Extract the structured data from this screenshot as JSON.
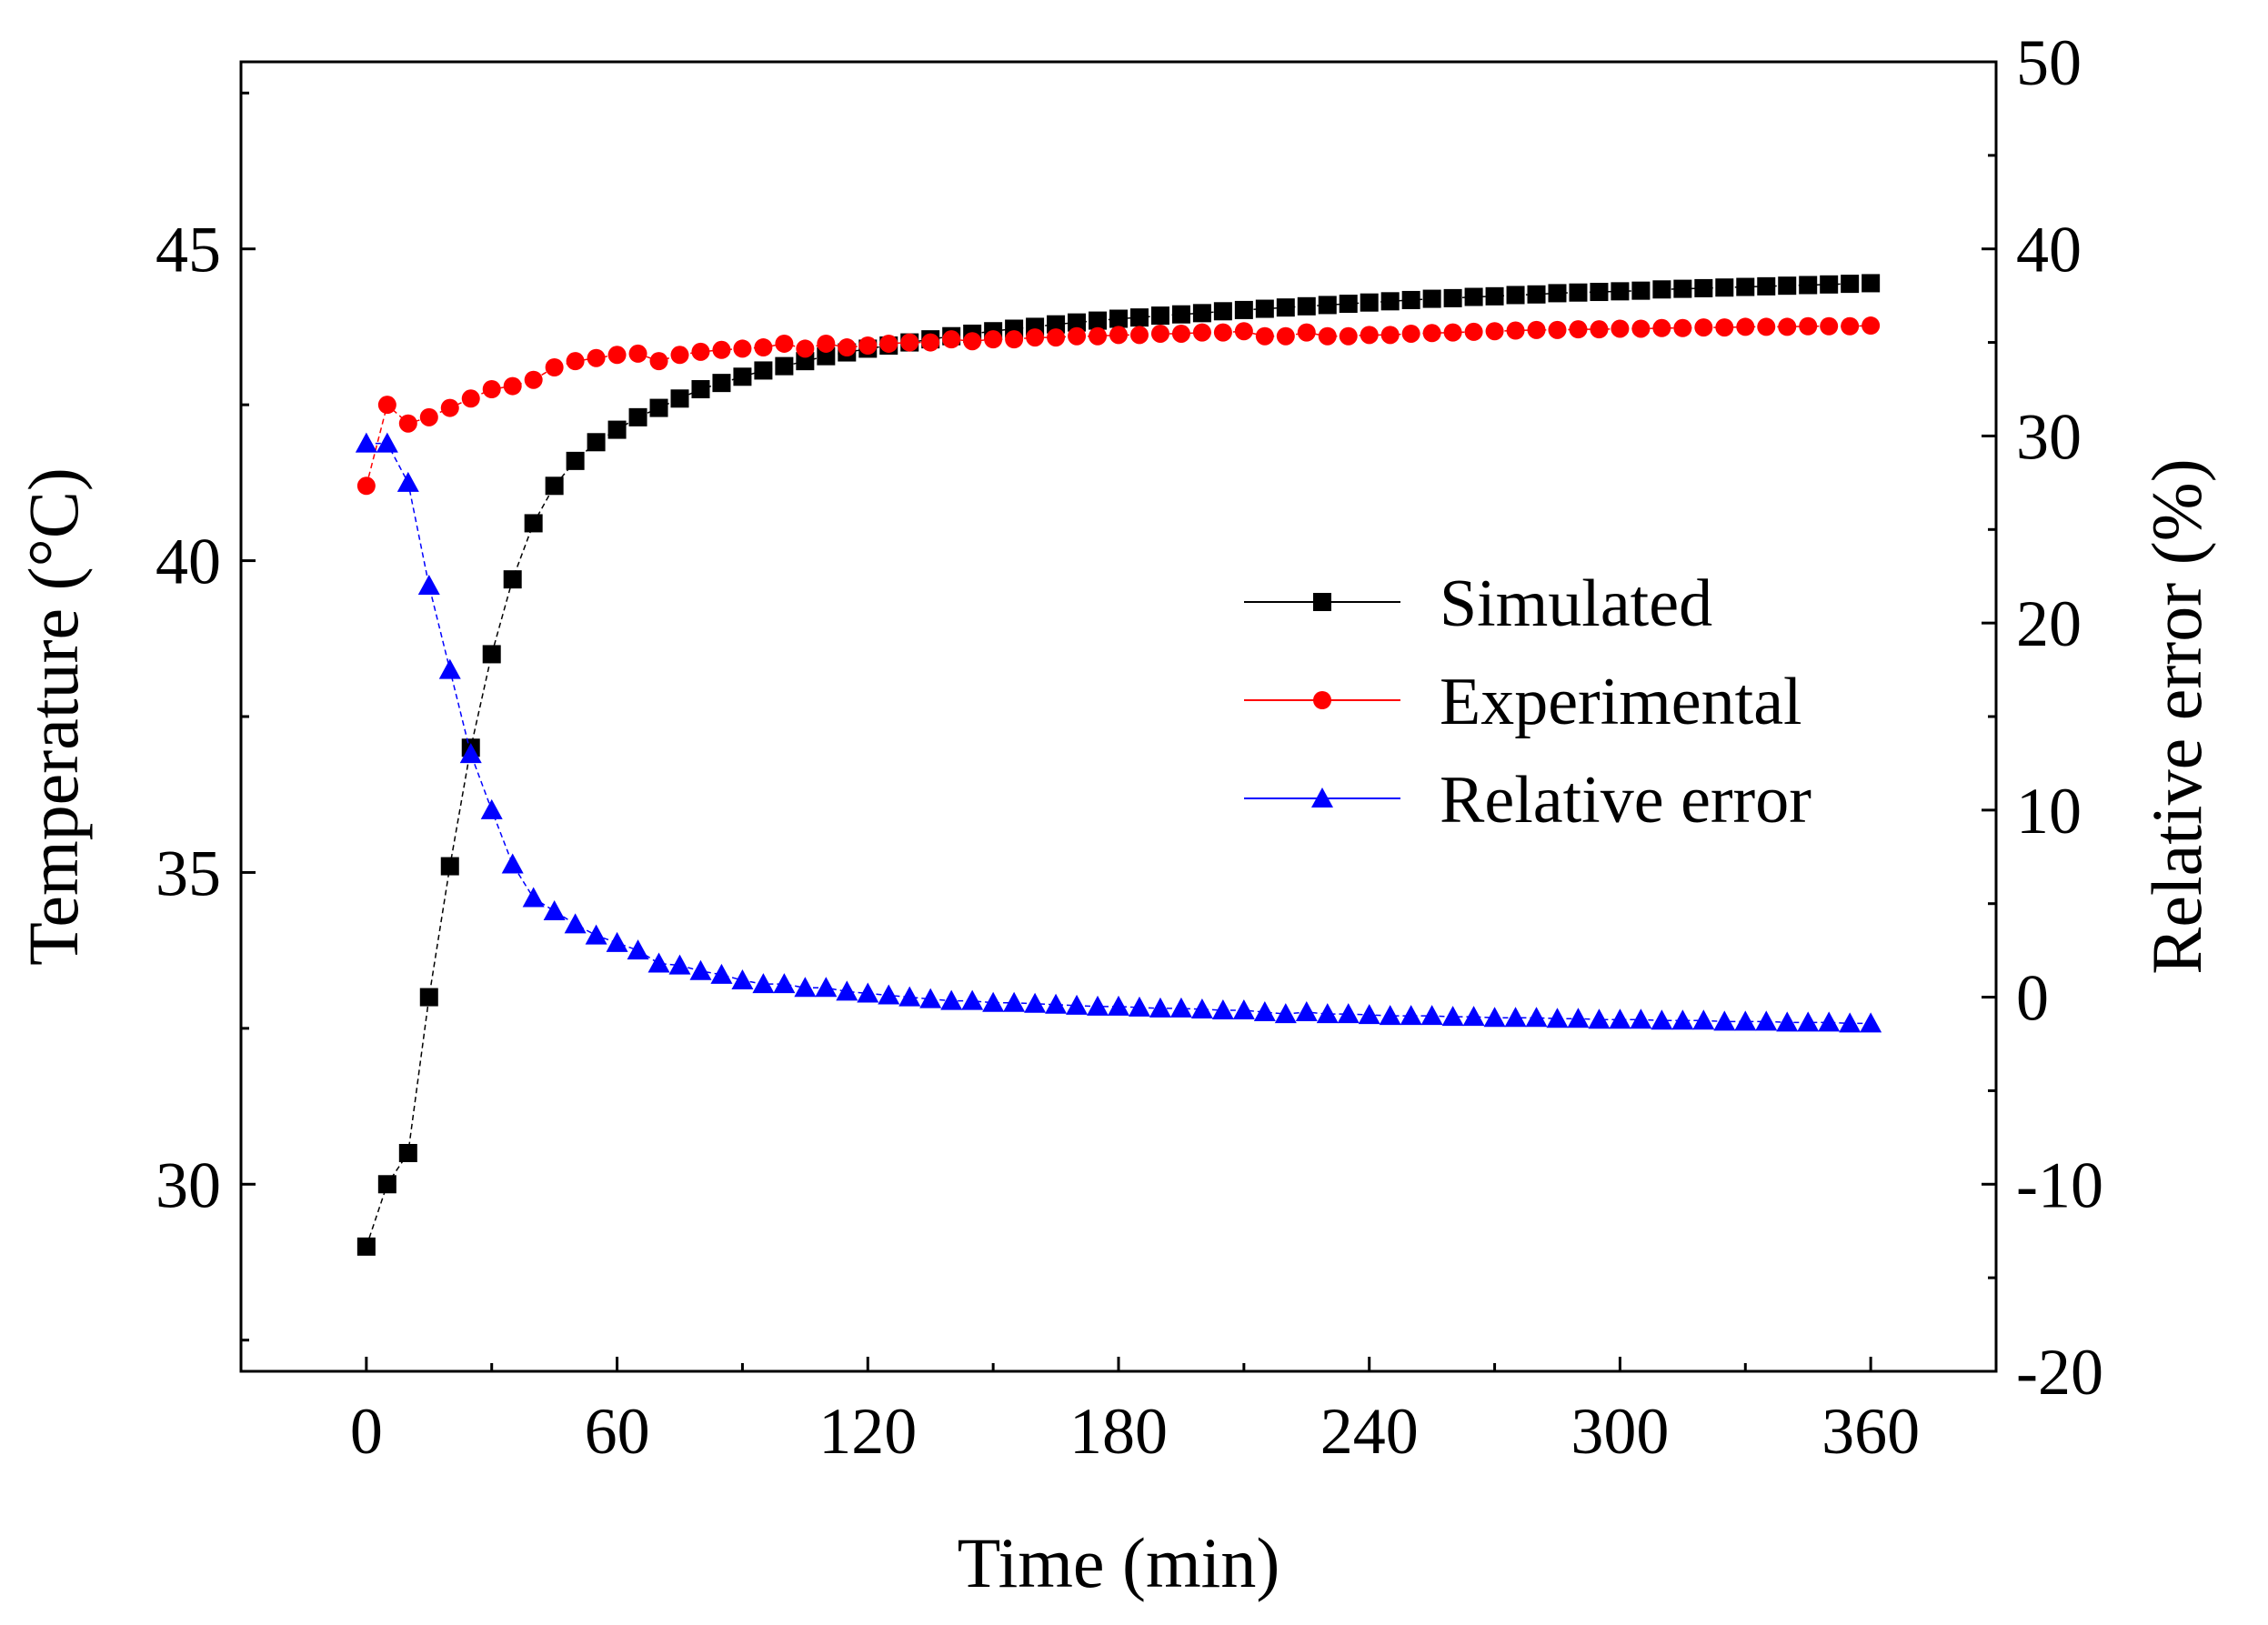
{
  "chart_data": {
    "type": "line",
    "title": "",
    "xlabel": "Time (min)",
    "ylabel": "Temperature (°C)",
    "y2label": "Relative error (%)",
    "xlim": [
      -30,
      390
    ],
    "ylim": [
      27,
      48
    ],
    "y2lim": [
      -20,
      50
    ],
    "xticks": [
      0,
      60,
      120,
      180,
      240,
      300,
      360
    ],
    "xtick_labels": [
      "0",
      "60",
      "120",
      "180",
      "240",
      "300",
      "360"
    ],
    "yticks": [
      30,
      35,
      40,
      45
    ],
    "ytick_labels": [
      "30",
      "35",
      "40",
      "45"
    ],
    "y2ticks": [
      -20,
      -10,
      0,
      10,
      20,
      30,
      40,
      50
    ],
    "y2tick_labels": [
      "-20",
      "-10",
      "0",
      "10",
      "20",
      "30",
      "40",
      "50"
    ],
    "legend_position": "center-right",
    "series": [
      {
        "name": "Simulated",
        "axis": "left",
        "color": "#000000",
        "marker": "square",
        "x": [
          0,
          5,
          10,
          15,
          20,
          25,
          30,
          35,
          40,
          45,
          50,
          55,
          60,
          65,
          70,
          75,
          80,
          85,
          90,
          95,
          100,
          105,
          110,
          115,
          120,
          125,
          130,
          135,
          140,
          145,
          150,
          155,
          160,
          165,
          170,
          175,
          180,
          185,
          190,
          195,
          200,
          205,
          210,
          215,
          220,
          225,
          230,
          235,
          240,
          245,
          250,
          255,
          260,
          265,
          270,
          275,
          280,
          285,
          290,
          295,
          300,
          305,
          310,
          315,
          320,
          325,
          330,
          335,
          340,
          345,
          350,
          355,
          360
        ],
        "values": [
          29.0,
          30.0,
          30.5,
          33.0,
          35.1,
          37.0,
          38.5,
          39.7,
          40.6,
          41.2,
          41.6,
          41.9,
          42.1,
          42.3,
          42.45,
          42.6,
          42.75,
          42.85,
          42.95,
          43.05,
          43.12,
          43.2,
          43.28,
          43.34,
          43.4,
          43.45,
          43.5,
          43.55,
          43.6,
          43.64,
          43.68,
          43.72,
          43.75,
          43.79,
          43.82,
          43.85,
          43.88,
          43.9,
          43.93,
          43.95,
          43.97,
          44.0,
          44.02,
          44.04,
          44.06,
          44.08,
          44.1,
          44.12,
          44.14,
          44.16,
          44.18,
          44.2,
          44.21,
          44.23,
          44.24,
          44.26,
          44.27,
          44.29,
          44.3,
          44.31,
          44.32,
          44.33,
          44.35,
          44.36,
          44.37,
          44.38,
          44.39,
          44.4,
          44.41,
          44.42,
          44.43,
          44.44,
          44.45
        ]
      },
      {
        "name": "Experimental",
        "axis": "left",
        "color": "#ff0000",
        "marker": "circle",
        "x": [
          0,
          5,
          10,
          15,
          20,
          25,
          30,
          35,
          40,
          45,
          50,
          55,
          60,
          65,
          70,
          75,
          80,
          85,
          90,
          95,
          100,
          105,
          110,
          115,
          120,
          125,
          130,
          135,
          140,
          145,
          150,
          155,
          160,
          165,
          170,
          175,
          180,
          185,
          190,
          195,
          200,
          205,
          210,
          215,
          220,
          225,
          230,
          235,
          240,
          245,
          250,
          255,
          260,
          265,
          270,
          275,
          280,
          285,
          290,
          295,
          300,
          305,
          310,
          315,
          320,
          325,
          330,
          335,
          340,
          345,
          350,
          355,
          360
        ],
        "values": [
          41.2,
          42.5,
          42.2,
          42.3,
          42.45,
          42.6,
          42.75,
          42.8,
          42.9,
          43.1,
          43.2,
          43.25,
          43.3,
          43.32,
          43.2,
          43.3,
          43.35,
          43.38,
          43.4,
          43.42,
          43.48,
          43.4,
          43.48,
          43.42,
          43.45,
          43.48,
          43.5,
          43.5,
          43.55,
          43.52,
          43.55,
          43.55,
          43.58,
          43.58,
          43.6,
          43.6,
          43.62,
          43.62,
          43.64,
          43.64,
          43.66,
          43.66,
          43.68,
          43.6,
          43.6,
          43.66,
          43.6,
          43.6,
          43.62,
          43.62,
          43.64,
          43.65,
          43.66,
          43.67,
          43.68,
          43.69,
          43.7,
          43.7,
          43.71,
          43.71,
          43.72,
          43.72,
          43.73,
          43.73,
          43.74,
          43.74,
          43.75,
          43.75,
          43.75,
          43.76,
          43.76,
          43.76,
          43.77
        ]
      },
      {
        "name": "Relative error",
        "axis": "right",
        "color": "#0000ff",
        "marker": "triangle",
        "x": [
          0,
          5,
          10,
          15,
          20,
          25,
          30,
          35,
          40,
          45,
          50,
          55,
          60,
          65,
          70,
          75,
          80,
          85,
          90,
          95,
          100,
          105,
          110,
          115,
          120,
          125,
          130,
          135,
          140,
          145,
          150,
          155,
          160,
          165,
          170,
          175,
          180,
          185,
          190,
          195,
          200,
          205,
          210,
          215,
          220,
          225,
          230,
          235,
          240,
          245,
          250,
          255,
          260,
          265,
          270,
          275,
          280,
          285,
          290,
          295,
          300,
          305,
          310,
          315,
          320,
          325,
          330,
          335,
          340,
          345,
          350,
          355,
          360
        ],
        "values": [
          29.6,
          29.6,
          27.5,
          22.0,
          17.5,
          13.0,
          10.0,
          7.1,
          5.3,
          4.6,
          3.9,
          3.3,
          2.9,
          2.5,
          1.8,
          1.7,
          1.4,
          1.2,
          0.9,
          0.7,
          0.7,
          0.5,
          0.5,
          0.3,
          0.2,
          0.1,
          0.0,
          -0.1,
          -0.2,
          -0.2,
          -0.3,
          -0.3,
          -0.35,
          -0.4,
          -0.45,
          -0.5,
          -0.5,
          -0.55,
          -0.6,
          -0.6,
          -0.65,
          -0.7,
          -0.7,
          -0.8,
          -0.9,
          -0.8,
          -0.9,
          -0.9,
          -0.95,
          -1.0,
          -1.0,
          -1.0,
          -1.05,
          -1.05,
          -1.1,
          -1.1,
          -1.1,
          -1.15,
          -1.15,
          -1.2,
          -1.2,
          -1.2,
          -1.25,
          -1.25,
          -1.25,
          -1.3,
          -1.3,
          -1.3,
          -1.35,
          -1.35,
          -1.35,
          -1.4,
          -1.4
        ]
      }
    ]
  }
}
